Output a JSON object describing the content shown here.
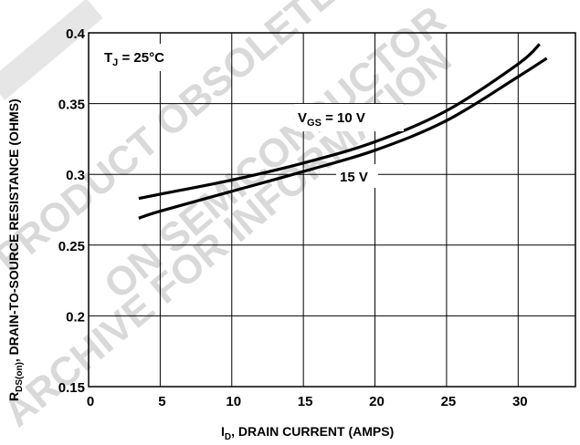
{
  "chart_data": {
    "type": "line",
    "title": "",
    "xlabel": {
      "main": "I",
      "sub": "D",
      "rest": ", DRAIN CURRENT (AMPS)"
    },
    "ylabel": {
      "main": "R",
      "sub": "DS(on)",
      "rest": ", DRAIN-TO-SOURCE RESISTANCE (OHMS)"
    },
    "xlim": [
      0,
      34
    ],
    "ylim": [
      0.15,
      0.4
    ],
    "xticks": [
      "0",
      "5",
      "10",
      "15",
      "20",
      "25",
      "30"
    ],
    "yticks": [
      "0.15",
      "0.2",
      "0.25",
      "0.3",
      "0.35",
      "0.4"
    ],
    "grid": true,
    "series": [
      {
        "name": "VGS = 10 V",
        "x": [
          3.5,
          5,
          10,
          15,
          20,
          25,
          30,
          31.5
        ],
        "y": [
          0.283,
          0.286,
          0.296,
          0.308,
          0.323,
          0.345,
          0.378,
          0.392
        ]
      },
      {
        "name": "15 V",
        "x": [
          3.5,
          5,
          10,
          15,
          20,
          25,
          30,
          32
        ],
        "y": [
          0.269,
          0.274,
          0.288,
          0.302,
          0.317,
          0.338,
          0.369,
          0.382
        ]
      }
    ],
    "annotations": {
      "tj": {
        "main": "T",
        "sub": "J",
        "rest": " =  25°C"
      },
      "vgs10": {
        "main": "V",
        "sub": "GS",
        "rest": " = 10 V"
      },
      "v15": "15 V"
    }
  },
  "watermark": {
    "lines": [
      "ARCHIVE FOR INFORMATION",
      "PRODUCT OBSOLETE",
      "ON SEMICONDUCTOR"
    ]
  }
}
